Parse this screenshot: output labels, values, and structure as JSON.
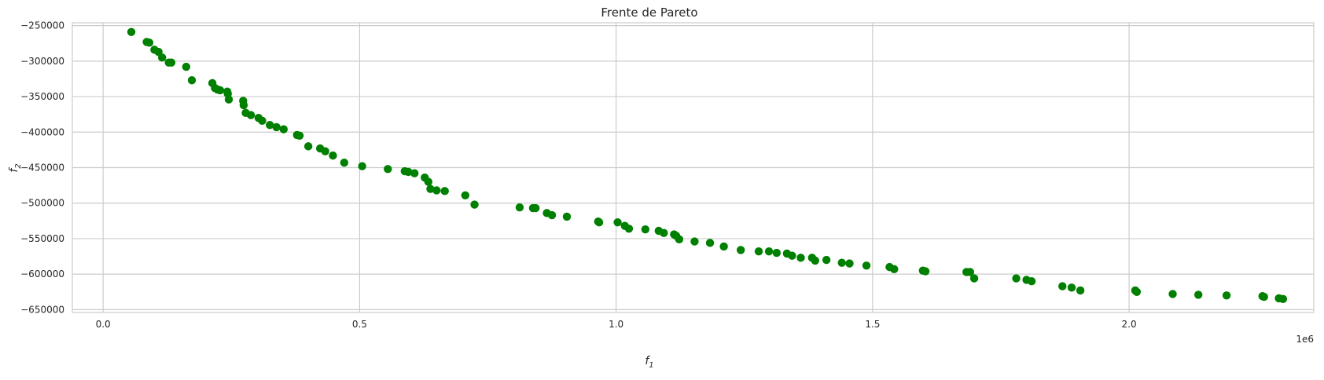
{
  "chart_data": {
    "type": "scatter",
    "title": "Frente de Pareto",
    "xlabel": "f",
    "xlabel_sub": "1",
    "ylabel": "f",
    "ylabel_sub": "2",
    "x_offset_label": "1e6",
    "xlim": [
      -60000,
      2360000
    ],
    "ylim": [
      -654000,
      -246000
    ],
    "x_ticks": [
      0,
      500000,
      1000000,
      1500000,
      2000000
    ],
    "x_tick_labels": [
      "0.0",
      "0.5",
      "1.0",
      "1.5",
      "2.0"
    ],
    "y_ticks": [
      -250000,
      -300000,
      -350000,
      -400000,
      -450000,
      -500000,
      -550000,
      -600000,
      -650000
    ],
    "y_tick_labels": [
      "−250000",
      "−300000",
      "−350000",
      "−400000",
      "−450000",
      "−500000",
      "−550000",
      "−600000",
      "−650000"
    ],
    "grid": true,
    "point_color": "#008000",
    "points": [
      [
        55000,
        -259000
      ],
      [
        85000,
        -273000
      ],
      [
        90000,
        -274000
      ],
      [
        100000,
        -284000
      ],
      [
        108000,
        -287000
      ],
      [
        115000,
        -295000
      ],
      [
        128000,
        -302000
      ],
      [
        133000,
        -302000
      ],
      [
        162000,
        -308000
      ],
      [
        173000,
        -327000
      ],
      [
        213000,
        -331000
      ],
      [
        218000,
        -338000
      ],
      [
        223000,
        -340000
      ],
      [
        228000,
        -341000
      ],
      [
        242000,
        -343000
      ],
      [
        243000,
        -346000
      ],
      [
        245000,
        -354000
      ],
      [
        273000,
        -356000
      ],
      [
        274000,
        -362000
      ],
      [
        278000,
        -373000
      ],
      [
        288000,
        -376000
      ],
      [
        303000,
        -380000
      ],
      [
        310000,
        -384000
      ],
      [
        325000,
        -390000
      ],
      [
        338000,
        -393000
      ],
      [
        352000,
        -396000
      ],
      [
        378000,
        -404000
      ],
      [
        383000,
        -405000
      ],
      [
        400000,
        -420000
      ],
      [
        423000,
        -423000
      ],
      [
        433000,
        -427000
      ],
      [
        448000,
        -433000
      ],
      [
        470000,
        -443000
      ],
      [
        505000,
        -448000
      ],
      [
        555000,
        -452000
      ],
      [
        588000,
        -455000
      ],
      [
        595000,
        -456000
      ],
      [
        607000,
        -458000
      ],
      [
        627000,
        -464000
      ],
      [
        634000,
        -470000
      ],
      [
        638000,
        -480000
      ],
      [
        650000,
        -482000
      ],
      [
        666000,
        -483000
      ],
      [
        706000,
        -489000
      ],
      [
        724000,
        -502000
      ],
      [
        812000,
        -506000
      ],
      [
        838000,
        -507000
      ],
      [
        843000,
        -507000
      ],
      [
        865000,
        -514000
      ],
      [
        875000,
        -517000
      ],
      [
        904000,
        -519000
      ],
      [
        965000,
        -526000
      ],
      [
        967000,
        -527000
      ],
      [
        1003000,
        -527000
      ],
      [
        1017000,
        -532000
      ],
      [
        1025000,
        -536000
      ],
      [
        1057000,
        -537000
      ],
      [
        1083000,
        -539000
      ],
      [
        1093000,
        -542000
      ],
      [
        1113000,
        -544000
      ],
      [
        1117000,
        -546000
      ],
      [
        1123000,
        -551000
      ],
      [
        1153000,
        -554000
      ],
      [
        1183000,
        -556000
      ],
      [
        1210000,
        -561000
      ],
      [
        1243000,
        -566000
      ],
      [
        1278000,
        -568000
      ],
      [
        1298000,
        -568000
      ],
      [
        1313000,
        -570000
      ],
      [
        1333000,
        -571000
      ],
      [
        1343000,
        -574000
      ],
      [
        1360000,
        -577000
      ],
      [
        1382000,
        -577000
      ],
      [
        1388000,
        -581000
      ],
      [
        1410000,
        -580000
      ],
      [
        1440000,
        -584000
      ],
      [
        1455000,
        -585000
      ],
      [
        1488000,
        -588000
      ],
      [
        1533000,
        -590000
      ],
      [
        1542000,
        -593000
      ],
      [
        1598000,
        -595000
      ],
      [
        1603000,
        -596000
      ],
      [
        1683000,
        -597000
      ],
      [
        1690000,
        -597000
      ],
      [
        1698000,
        -606000
      ],
      [
        1780000,
        -606000
      ],
      [
        1800000,
        -608000
      ],
      [
        1810000,
        -610000
      ],
      [
        1870000,
        -617000
      ],
      [
        1888000,
        -619000
      ],
      [
        1905000,
        -623000
      ],
      [
        2012000,
        -623000
      ],
      [
        2015000,
        -625000
      ],
      [
        2085000,
        -628000
      ],
      [
        2135000,
        -629000
      ],
      [
        2190000,
        -630000
      ],
      [
        2260000,
        -631000
      ],
      [
        2263000,
        -632000
      ],
      [
        2292000,
        -634000
      ],
      [
        2300000,
        -635000
      ]
    ]
  }
}
